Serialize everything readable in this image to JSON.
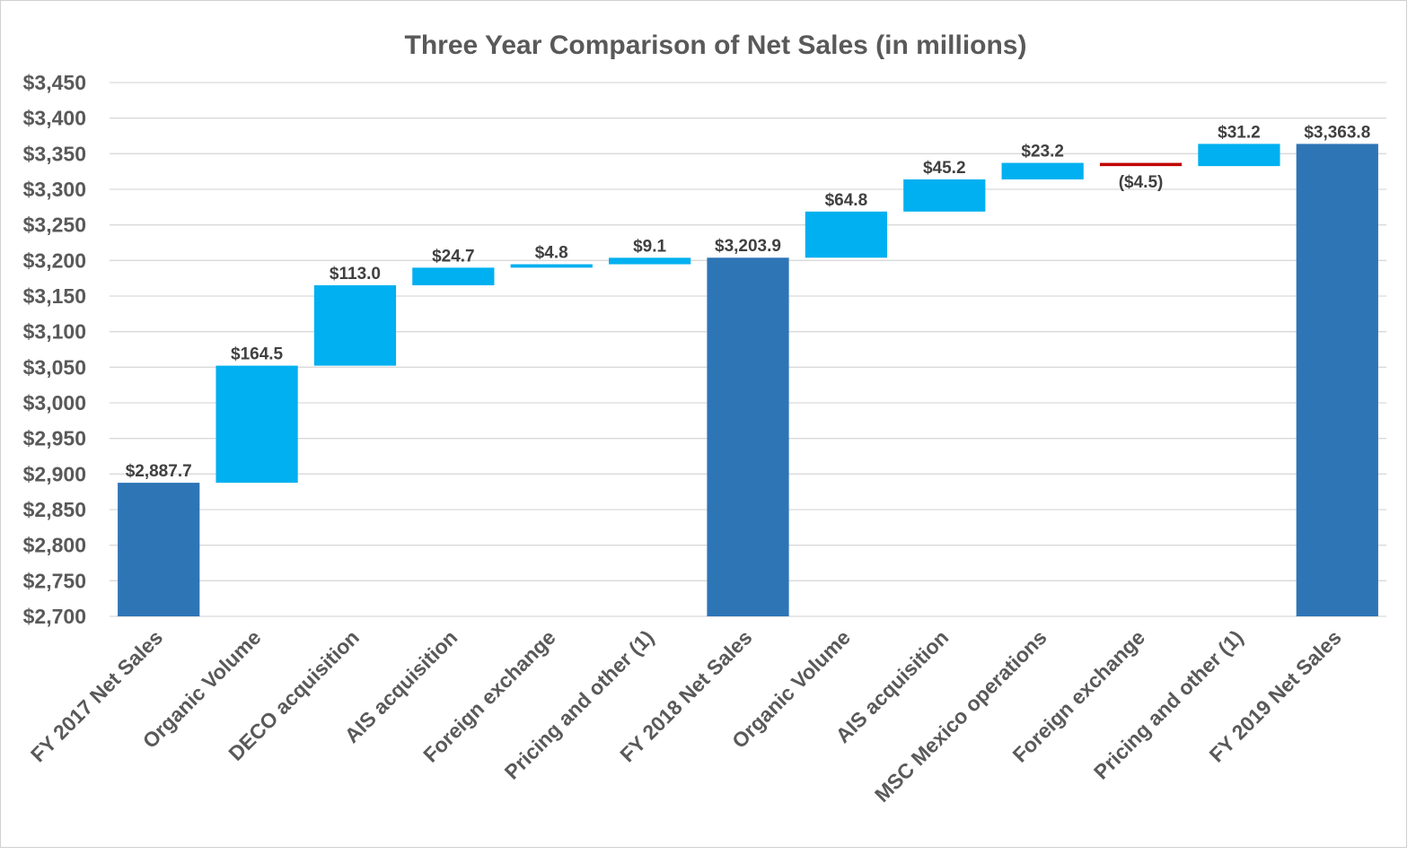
{
  "chart_data": {
    "type": "bar",
    "subtype": "waterfall",
    "title": "Three Year Comparison of Net Sales (in millions)",
    "xlabel": "",
    "ylabel": "",
    "ylim": [
      2700,
      3450
    ],
    "ytick_step": 50,
    "ytick_labels": [
      "$2,700",
      "$2,750",
      "$2,800",
      "$2,850",
      "$2,900",
      "$2,950",
      "$3,000",
      "$3,050",
      "$3,100",
      "$3,150",
      "$3,200",
      "$3,250",
      "$3,300",
      "$3,350",
      "$3,400",
      "$3,450"
    ],
    "grid": true,
    "legend": "none",
    "categories": [
      "FY 2017 Net Sales",
      "Organic Volume",
      "DECO acquisition",
      "AIS acquisition",
      "Foreign exchange",
      "Pricing and other (1)",
      "FY 2018 Net Sales",
      "Organic Volume",
      "AIS acquisition",
      "MSC Mexico operations",
      "Foreign exchange",
      "Pricing and other (1)",
      "FY 2019 Net Sales"
    ],
    "kinds": [
      "total",
      "increase",
      "increase",
      "increase",
      "increase",
      "increase",
      "total",
      "increase",
      "increase",
      "increase",
      "decrease",
      "increase",
      "total"
    ],
    "values": [
      2887.7,
      164.5,
      113.0,
      24.7,
      4.8,
      9.1,
      3203.9,
      64.8,
      45.2,
      23.2,
      -4.5,
      31.2,
      3363.8
    ],
    "data_labels": [
      "$2,887.7",
      "$164.5",
      "$113.0",
      "$24.7",
      "$4.8",
      "$9.1",
      "$3,203.9",
      "$64.8",
      "$45.2",
      "$23.2",
      "($4.5)",
      "$31.2",
      "$3,363.8"
    ],
    "colors": {
      "total": "#2e75b6",
      "increase": "#00b0f0",
      "decrease": "#c00000"
    }
  }
}
